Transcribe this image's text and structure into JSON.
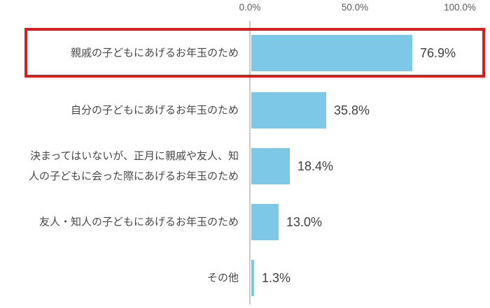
{
  "chart_data": {
    "type": "bar",
    "orientation": "horizontal",
    "title": "",
    "categories": [
      "親戚の子どもにあげるお年玉のため",
      "自分の子どもにあげるお年玉のため",
      "決まってはいないが、正月に親戚や友人、知\n人の子どもに会った際にあげるお年玉のため",
      "友人・知人の子どもにあげるお年玉のため",
      "その他"
    ],
    "values": [
      76.9,
      35.8,
      18.4,
      13.0,
      1.3
    ],
    "value_labels": [
      "76.9%",
      "35.8%",
      "18.4%",
      "13.0%",
      "1.3%"
    ],
    "x_axis": {
      "position": "top",
      "ticks": [
        "0.0%",
        "50.0%",
        "100.0%"
      ],
      "range": [
        0,
        100
      ]
    },
    "grid": "off",
    "legend": "none",
    "highlight": {
      "category_index": 0,
      "shape": "red-rectangle-around-row"
    },
    "colors": {
      "bar": "#7dc8e6",
      "highlight_border": "#dd1c1c",
      "axis_line": "#c9c9c9",
      "category_text": "#474747",
      "value_text": "#404040",
      "tick_text": "#595959",
      "background": "#ffffff"
    }
  }
}
